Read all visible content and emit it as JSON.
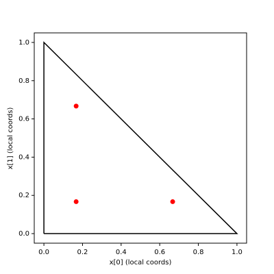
{
  "chart_data": {
    "type": "scatter",
    "xlabel": "x[0] (local coords)",
    "ylabel": "x[1] (local coords)",
    "xlim": [
      -0.05,
      1.05
    ],
    "ylim": [
      -0.05,
      1.05
    ],
    "xticks": [
      {
        "value": 0,
        "label": "0.0"
      },
      0.2,
      0.4,
      0.6,
      0.8,
      {
        "value": 1,
        "label": "1.0"
      }
    ],
    "yticks": [
      {
        "value": 0,
        "label": "0.0"
      },
      0.2,
      0.4,
      0.6,
      0.8,
      {
        "value": 1,
        "label": "1.0"
      }
    ],
    "series": [
      {
        "type": "line",
        "color": "#000000",
        "x": [
          0,
          1,
          0,
          0
        ],
        "values": [
          0,
          0,
          1,
          0
        ]
      },
      {
        "type": "scatter",
        "color": "#ff0000",
        "x": [
          0.167,
          0.667,
          0.167
        ],
        "values": [
          0.167,
          0.167,
          0.667
        ]
      }
    ]
  }
}
